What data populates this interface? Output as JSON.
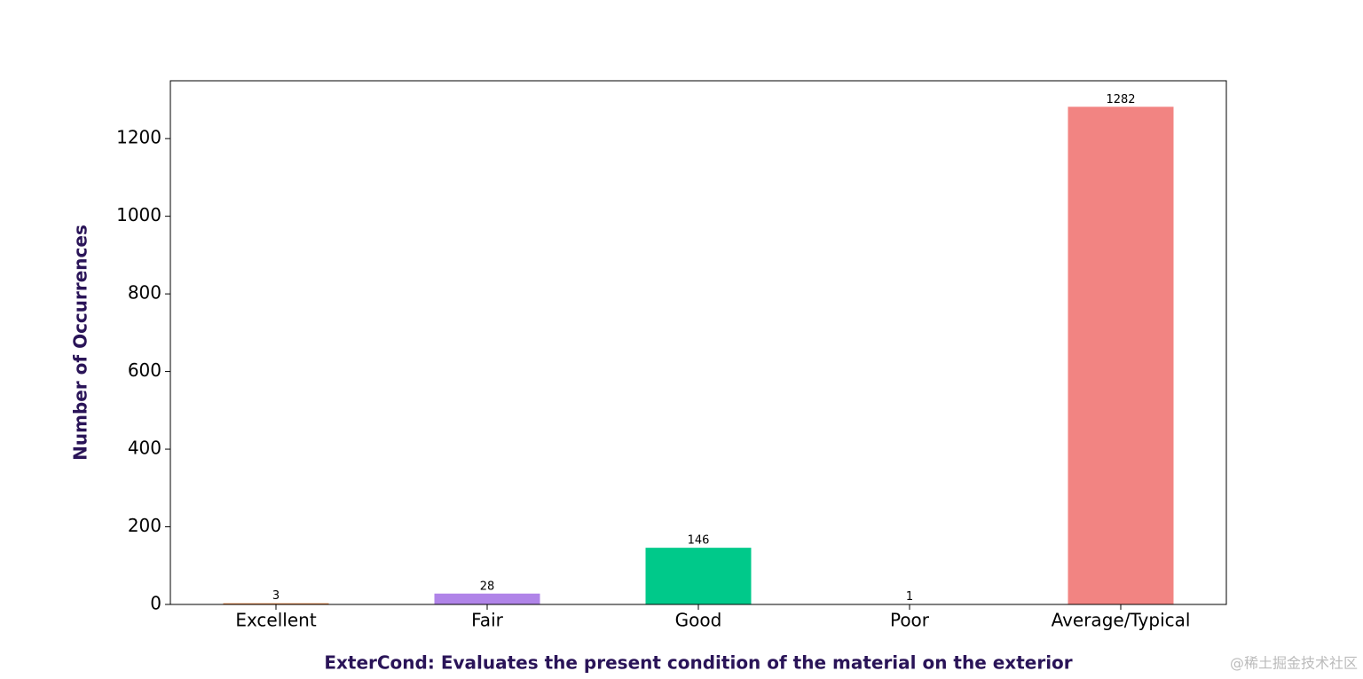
{
  "chart_data": {
    "type": "bar",
    "x_label": "ExterCond: Evaluates the present condition of the material on the exterior",
    "y_label": "Number of Occurrences",
    "categories": [
      "Excellent",
      "Fair",
      "Good",
      "Poor",
      "Average/Typical"
    ],
    "values": [
      3,
      28,
      146,
      1,
      1282
    ],
    "colors": [
      "#e07b39",
      "#b084e8",
      "#00c98a",
      "#1f5f6f",
      "#f28482"
    ],
    "ylim": [
      0,
      1349
    ],
    "yticks": [
      0,
      200,
      400,
      600,
      800,
      1000,
      1200
    ],
    "grid": false
  },
  "watermark": "@稀土掘金技术社区"
}
